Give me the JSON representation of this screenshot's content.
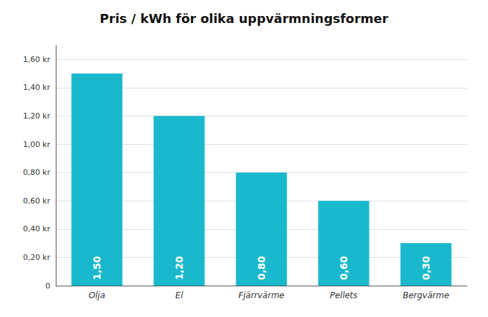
{
  "chart_data": {
    "type": "bar",
    "title": "Pris / kWh för olika uppvärmningsformer",
    "categories": [
      "Olja",
      "El",
      "Fjärrvärme",
      "Pellets",
      "Bergvärme"
    ],
    "values": [
      1.5,
      1.2,
      0.8,
      0.6,
      0.3
    ],
    "value_labels": [
      "1,50",
      "1,20",
      "0,80",
      "0,60",
      "0,30"
    ],
    "data_labels": true,
    "color": "#19B8CC",
    "ylim": [
      0,
      1.7
    ],
    "yticks": [
      0,
      {
        "value": 0.2,
        "label": "0,20 kr"
      },
      {
        "value": 0.4,
        "label": "0,40 kr"
      },
      {
        "value": 0.6,
        "label": "0,60 kr"
      },
      {
        "value": 0.8,
        "label": "0,80 kr"
      },
      {
        "value": 1.0,
        "label": "1,00 kr"
      },
      {
        "value": 1.2,
        "label": "1,20 kr"
      },
      {
        "value": 1.4,
        "label": "1,40 kr"
      },
      {
        "value": 1.6,
        "label": "1,60 kr"
      }
    ],
    "grid": true
  }
}
